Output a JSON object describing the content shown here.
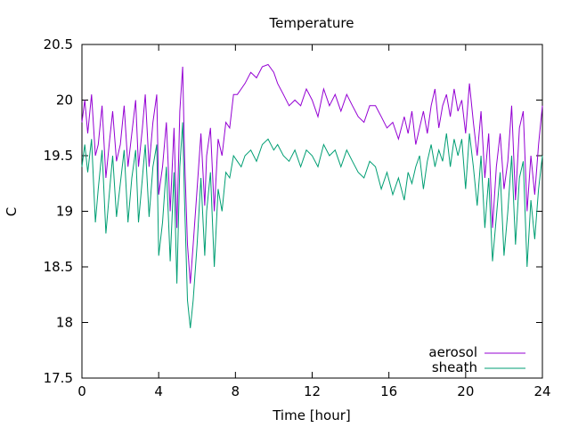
{
  "chart_data": {
    "type": "line",
    "title": "Temperature",
    "xlabel": "Time [hour]",
    "ylabel": "C",
    "xlim": [
      0,
      24
    ],
    "ylim": [
      17.5,
      20.5
    ],
    "xticks": [
      "0",
      "4",
      "8",
      "12",
      "16",
      "20",
      "24"
    ],
    "yticks": [
      "17.5",
      "18",
      "18.5",
      "19",
      "19.5",
      "20",
      "20.5"
    ],
    "grid": false,
    "legend_position": "bottom-right",
    "series": [
      {
        "name": "aerosol",
        "color": "#9400d3",
        "x": [
          0,
          0.15,
          0.3,
          0.5,
          0.7,
          0.85,
          1.05,
          1.25,
          1.45,
          1.6,
          1.8,
          2.0,
          2.2,
          2.4,
          2.6,
          2.8,
          2.95,
          3.15,
          3.3,
          3.5,
          3.7,
          3.9,
          4.0,
          4.2,
          4.4,
          4.6,
          4.8,
          4.95,
          5.1,
          5.25,
          5.35,
          5.5,
          5.65,
          5.8,
          6.0,
          6.2,
          6.4,
          6.5,
          6.7,
          6.9,
          7.1,
          7.3,
          7.5,
          7.7,
          7.9,
          8.1,
          8.3,
          8.5,
          8.8,
          9.1,
          9.4,
          9.7,
          10.0,
          10.2,
          10.5,
          10.8,
          11.1,
          11.4,
          11.7,
          12.0,
          12.3,
          12.6,
          12.9,
          13.2,
          13.5,
          13.8,
          14.1,
          14.4,
          14.7,
          15.0,
          15.3,
          15.6,
          15.9,
          16.2,
          16.5,
          16.8,
          17.0,
          17.2,
          17.4,
          17.6,
          17.8,
          18.0,
          18.2,
          18.4,
          18.6,
          18.8,
          19.0,
          19.2,
          19.4,
          19.6,
          19.8,
          20.0,
          20.2,
          20.4,
          20.6,
          20.8,
          21.0,
          21.2,
          21.4,
          21.6,
          21.8,
          22.0,
          22.2,
          22.4,
          22.6,
          22.8,
          23.0,
          23.2,
          23.4,
          23.6,
          23.8,
          24.0
        ],
        "y": [
          19.8,
          20.0,
          19.7,
          20.05,
          19.5,
          19.6,
          19.95,
          19.3,
          19.65,
          19.9,
          19.45,
          19.6,
          19.95,
          19.4,
          19.7,
          20.0,
          19.4,
          19.75,
          20.05,
          19.4,
          19.8,
          20.05,
          19.15,
          19.4,
          19.8,
          19.0,
          19.75,
          18.85,
          19.9,
          20.3,
          19.5,
          18.7,
          18.35,
          18.7,
          19.2,
          19.7,
          19.05,
          19.5,
          19.75,
          19.0,
          19.65,
          19.5,
          19.8,
          19.75,
          20.05,
          20.05,
          20.1,
          20.15,
          20.25,
          20.2,
          20.3,
          20.32,
          20.25,
          20.15,
          20.05,
          19.95,
          20.0,
          19.95,
          20.1,
          20.0,
          19.85,
          20.1,
          19.95,
          20.05,
          19.9,
          20.05,
          19.95,
          19.85,
          19.8,
          19.95,
          19.95,
          19.85,
          19.75,
          19.8,
          19.65,
          19.85,
          19.7,
          19.9,
          19.6,
          19.75,
          19.9,
          19.7,
          19.95,
          20.1,
          19.75,
          19.95,
          20.05,
          19.85,
          20.1,
          19.9,
          20.0,
          19.7,
          20.15,
          19.8,
          19.5,
          19.9,
          19.3,
          19.7,
          18.85,
          19.4,
          19.7,
          19.2,
          19.45,
          19.95,
          19.1,
          19.75,
          19.9,
          19.0,
          19.5,
          19.15,
          19.6,
          19.95
        ]
      },
      {
        "name": "sheath",
        "color": "#009e73",
        "x": [
          0,
          0.15,
          0.3,
          0.5,
          0.7,
          0.85,
          1.05,
          1.25,
          1.45,
          1.6,
          1.8,
          2.0,
          2.2,
          2.4,
          2.6,
          2.8,
          2.95,
          3.15,
          3.3,
          3.5,
          3.7,
          3.9,
          4.0,
          4.2,
          4.4,
          4.6,
          4.8,
          4.95,
          5.1,
          5.25,
          5.35,
          5.5,
          5.65,
          5.8,
          6.0,
          6.2,
          6.4,
          6.5,
          6.7,
          6.9,
          7.1,
          7.3,
          7.5,
          7.7,
          7.9,
          8.1,
          8.3,
          8.5,
          8.8,
          9.1,
          9.4,
          9.7,
          10.0,
          10.2,
          10.5,
          10.8,
          11.1,
          11.4,
          11.7,
          12.0,
          12.3,
          12.6,
          12.9,
          13.2,
          13.5,
          13.8,
          14.1,
          14.4,
          14.7,
          15.0,
          15.3,
          15.6,
          15.9,
          16.2,
          16.5,
          16.8,
          17.0,
          17.2,
          17.4,
          17.6,
          17.8,
          18.0,
          18.2,
          18.4,
          18.6,
          18.8,
          19.0,
          19.2,
          19.4,
          19.6,
          19.8,
          20.0,
          20.2,
          20.4,
          20.6,
          20.8,
          21.0,
          21.2,
          21.4,
          21.6,
          21.8,
          22.0,
          22.2,
          22.4,
          22.6,
          22.8,
          23.0,
          23.2,
          23.4,
          23.6,
          23.8,
          24.0
        ],
        "y": [
          19.4,
          19.6,
          19.35,
          19.65,
          18.9,
          19.2,
          19.55,
          18.8,
          19.2,
          19.5,
          18.95,
          19.25,
          19.55,
          18.9,
          19.3,
          19.55,
          18.9,
          19.3,
          19.6,
          18.95,
          19.4,
          19.6,
          18.6,
          18.9,
          19.4,
          18.55,
          19.35,
          18.35,
          19.4,
          19.8,
          19.1,
          18.2,
          17.95,
          18.2,
          18.7,
          19.3,
          18.6,
          19.0,
          19.35,
          18.5,
          19.2,
          19.0,
          19.35,
          19.3,
          19.5,
          19.45,
          19.4,
          19.5,
          19.55,
          19.45,
          19.6,
          19.65,
          19.55,
          19.6,
          19.5,
          19.45,
          19.55,
          19.4,
          19.55,
          19.5,
          19.4,
          19.6,
          19.5,
          19.55,
          19.4,
          19.55,
          19.45,
          19.35,
          19.3,
          19.45,
          19.4,
          19.2,
          19.35,
          19.15,
          19.3,
          19.1,
          19.35,
          19.25,
          19.4,
          19.5,
          19.2,
          19.45,
          19.6,
          19.4,
          19.55,
          19.45,
          19.7,
          19.4,
          19.65,
          19.5,
          19.65,
          19.2,
          19.7,
          19.4,
          19.05,
          19.5,
          18.85,
          19.3,
          18.55,
          18.95,
          19.35,
          18.6,
          19.0,
          19.5,
          18.7,
          19.3,
          19.45,
          18.5,
          19.1,
          18.75,
          19.2,
          19.5
        ]
      }
    ]
  }
}
